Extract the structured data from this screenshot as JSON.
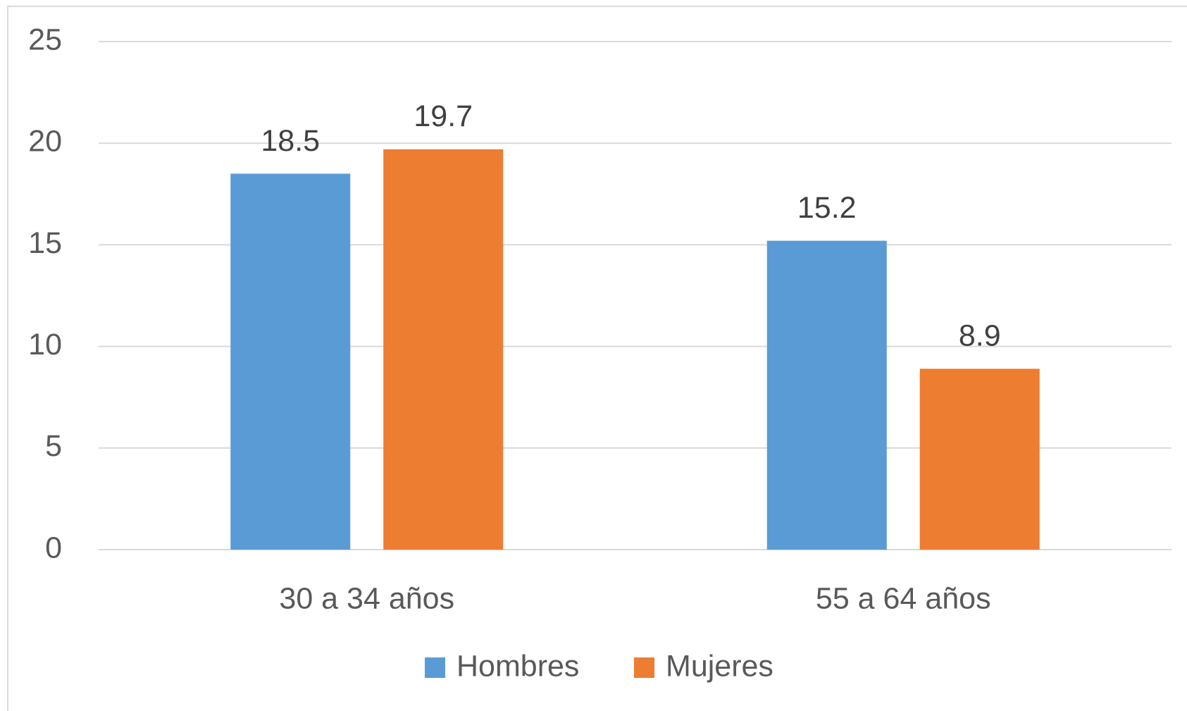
{
  "chart_data": {
    "type": "bar",
    "categories": [
      "30 a 34 años",
      "55 a 64 años"
    ],
    "series": [
      {
        "name": "Hombres",
        "color": "#5b9bd5",
        "values": [
          18.5,
          15.2
        ]
      },
      {
        "name": "Mujeres",
        "color": "#ed7d31",
        "values": [
          19.7,
          8.9
        ]
      }
    ],
    "ylim": [
      0,
      25
    ],
    "yticks": [
      0,
      5,
      10,
      15,
      20,
      25
    ],
    "grid": true,
    "legend": "bottom"
  }
}
